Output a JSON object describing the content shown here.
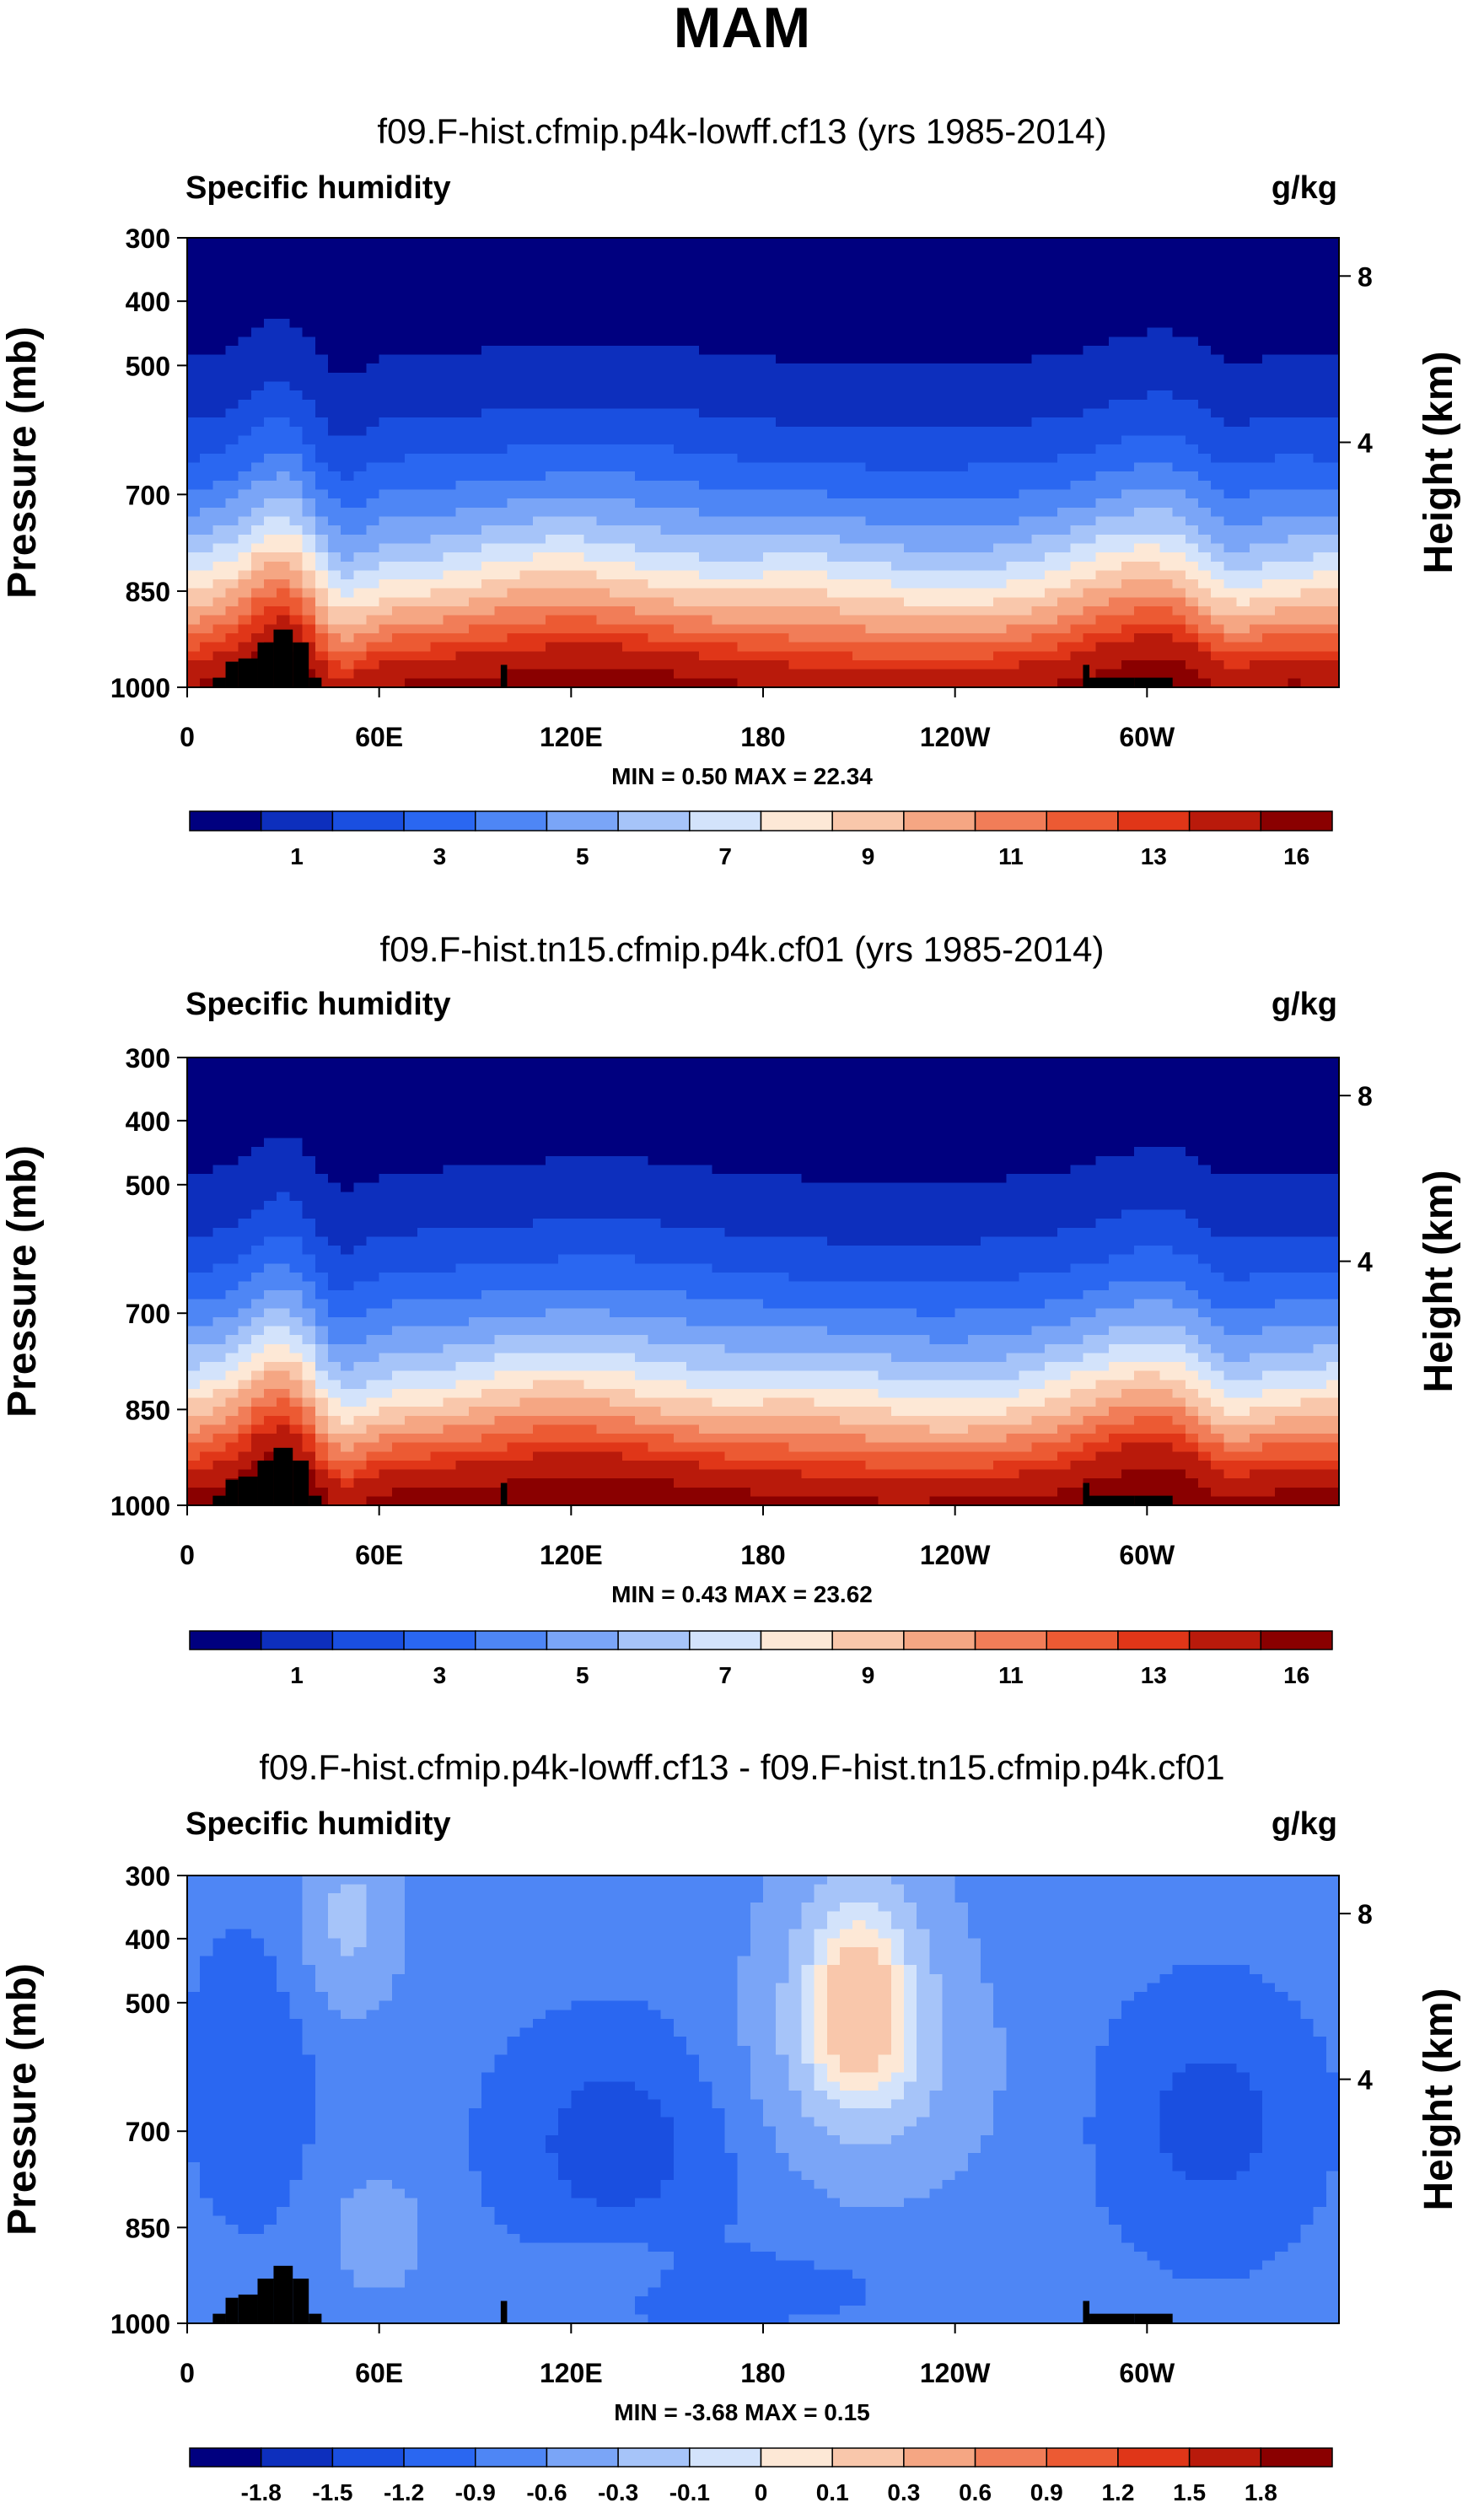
{
  "figure_title": "MAM",
  "chart_data": [
    {
      "type": "contour",
      "title": "f09.F-hist.cfmip.p4k-lowff.cf13 (yrs 1985-2014)",
      "left_label": "Specific humidity",
      "right_label": "g/kg",
      "ylabel": "Pressure (mb)",
      "ylabel_right": "Height (km)",
      "y_ticks": [
        "300",
        "400",
        "500",
        "700",
        "850",
        "1000"
      ],
      "y_tick_values": [
        300,
        400,
        500,
        700,
        850,
        1000
      ],
      "y_right_ticks": [
        "8",
        "4"
      ],
      "y_right_tick_values": [
        8,
        4
      ],
      "x_ticks": [
        "0",
        "60E",
        "120E",
        "180",
        "120W",
        "60W"
      ],
      "x_tick_values": [
        0,
        60,
        120,
        180,
        240,
        300
      ],
      "xlim": [
        0,
        360
      ],
      "ylim": [
        300,
        1000
      ],
      "stats": "MIN =   0.50  MAX =  22.34",
      "min": 0.5,
      "max": 22.34,
      "colorbar_labels": [
        "1",
        "3",
        "5",
        "7",
        "9",
        "11",
        "13",
        "16"
      ],
      "colorbar_levels": [
        0.5,
        1,
        2,
        3,
        4,
        5,
        6,
        7,
        8,
        9,
        10,
        11,
        12,
        13,
        14,
        16
      ],
      "mode": "absolute",
      "depth_scale": 1.0
    },
    {
      "type": "contour",
      "title": "f09.F-hist.tn15.cfmip.p4k.cf01 (yrs 1985-2014)",
      "left_label": "Specific humidity",
      "right_label": "g/kg",
      "ylabel": "Pressure (mb)",
      "ylabel_right": "Height (km)",
      "y_ticks": [
        "300",
        "400",
        "500",
        "700",
        "850",
        "1000"
      ],
      "y_tick_values": [
        300,
        400,
        500,
        700,
        850,
        1000
      ],
      "y_right_ticks": [
        "8",
        "4"
      ],
      "y_right_tick_values": [
        8,
        4
      ],
      "x_ticks": [
        "0",
        "60E",
        "120E",
        "180",
        "120W",
        "60W"
      ],
      "x_tick_values": [
        0,
        60,
        120,
        180,
        240,
        300
      ],
      "xlim": [
        0,
        360
      ],
      "ylim": [
        300,
        1000
      ],
      "stats": "MIN =   0.43  MAX =  23.62",
      "min": 0.43,
      "max": 23.62,
      "colorbar_labels": [
        "1",
        "3",
        "5",
        "7",
        "9",
        "11",
        "13",
        "16"
      ],
      "colorbar_levels": [
        0.5,
        1,
        2,
        3,
        4,
        5,
        6,
        7,
        8,
        9,
        10,
        11,
        12,
        13,
        14,
        16
      ],
      "mode": "absolute",
      "depth_scale": 1.06
    },
    {
      "type": "contour",
      "title": "f09.F-hist.cfmip.p4k-lowff.cf13 - f09.F-hist.tn15.cfmip.p4k.cf01",
      "left_label": "Specific humidity",
      "right_label": "g/kg",
      "ylabel": "Pressure (mb)",
      "ylabel_right": "Height (km)",
      "y_ticks": [
        "300",
        "400",
        "500",
        "700",
        "850",
        "1000"
      ],
      "y_tick_values": [
        300,
        400,
        500,
        700,
        850,
        1000
      ],
      "y_right_ticks": [
        "8",
        "4"
      ],
      "y_right_tick_values": [
        8,
        4
      ],
      "x_ticks": [
        "0",
        "60E",
        "120E",
        "180",
        "120W",
        "60W"
      ],
      "x_tick_values": [
        0,
        60,
        120,
        180,
        240,
        300
      ],
      "xlim": [
        0,
        360
      ],
      "ylim": [
        300,
        1000
      ],
      "stats": "MIN =  -3.68  MAX =   0.15",
      "min": -3.68,
      "max": 0.15,
      "colorbar_labels": [
        "-1.8",
        "-1.5",
        "-1.2",
        "-0.9",
        "-0.6",
        "-0.3",
        "-0.1",
        "0",
        "0.1",
        "0.3",
        "0.6",
        "0.9",
        "1.2",
        "1.5",
        "1.8"
      ],
      "colorbar_levels": [
        -1.8,
        -1.5,
        -1.2,
        -0.9,
        -0.6,
        -0.3,
        -0.1,
        0,
        0.1,
        0.3,
        0.6,
        0.9,
        1.2,
        1.5,
        1.8
      ],
      "mode": "difference",
      "depth_scale": 1.0
    }
  ],
  "colormap": [
    "#00007f",
    "#0d2fbd",
    "#1a4fe0",
    "#2a67f1",
    "#4e86f5",
    "#7aa5f7",
    "#a6c4f9",
    "#d3e3fb",
    "#fde8d6",
    "#f9c7ab",
    "#f5a683",
    "#f17d58",
    "#ec5a33",
    "#e03618",
    "#b91a0b",
    "#8a0000"
  ],
  "land_color": "#000000"
}
